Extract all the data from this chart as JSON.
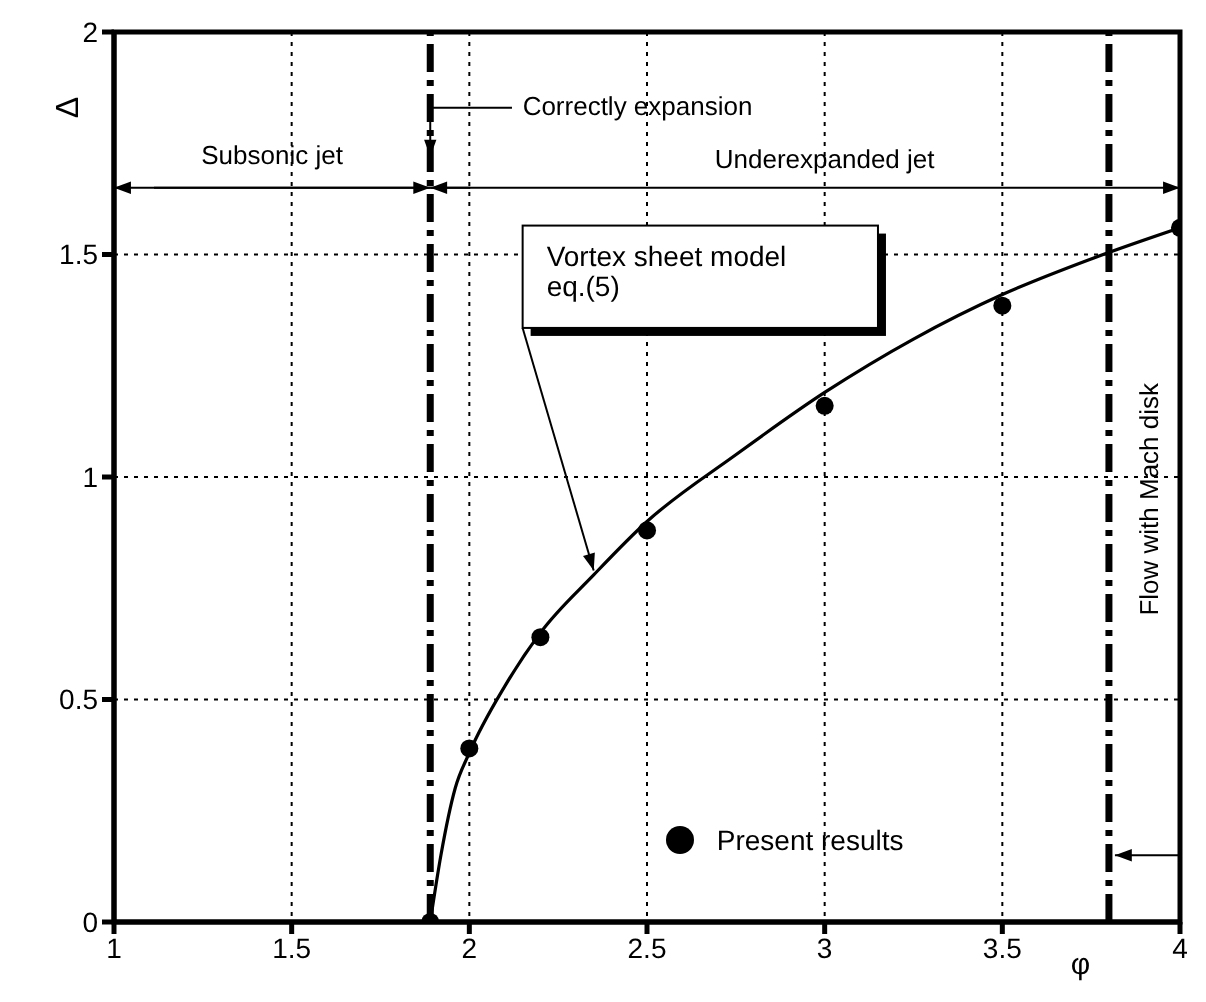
{
  "chart_data": {
    "type": "scatter",
    "xlabel": "φ",
    "ylabel": "Δ",
    "xlim": [
      1,
      4
    ],
    "ylim": [
      0,
      2
    ],
    "xticks": [
      1,
      1.5,
      2,
      2.5,
      3,
      3.5,
      4
    ],
    "yticks": [
      0,
      0.5,
      1,
      1.5,
      2
    ],
    "grid": true,
    "legend": "bottom right",
    "series": [
      {
        "type": "line",
        "color": "#000000",
        "x": [
          1.89,
          1.92,
          1.96,
          2,
          2.1,
          2.2,
          2.35,
          2.5,
          2.75,
          3,
          3.25,
          3.5,
          3.75,
          4
        ],
        "values": [
          0,
          0.15,
          0.3,
          0.38,
          0.53,
          0.65,
          0.78,
          0.9,
          1.05,
          1.19,
          1.31,
          1.41,
          1.49,
          1.56
        ]
      },
      {
        "name": "Present results",
        "color": "#000000",
        "marker": "circle",
        "x": [
          1.89,
          2,
          2.2,
          2.5,
          3,
          3.5,
          4
        ],
        "values": [
          0,
          0.39,
          0.64,
          0.88,
          1.16,
          1.385,
          1.56
        ]
      }
    ],
    "ref_lines": [
      {
        "axis": "x",
        "value": 1.89,
        "label": "Correctly expansion",
        "line_style": "dashed",
        "color": "#000000"
      },
      {
        "axis": "x",
        "value": 3.8,
        "label": "Flow with Mach disk",
        "line_style": "dashed",
        "color": "#000000"
      }
    ],
    "annotations": [
      "Subsonic jet",
      "Underexpanded jet",
      {
        "text": "Vortex sheet model eq.(5)",
        "x": 2.35,
        "y": 0.79
      }
    ]
  }
}
